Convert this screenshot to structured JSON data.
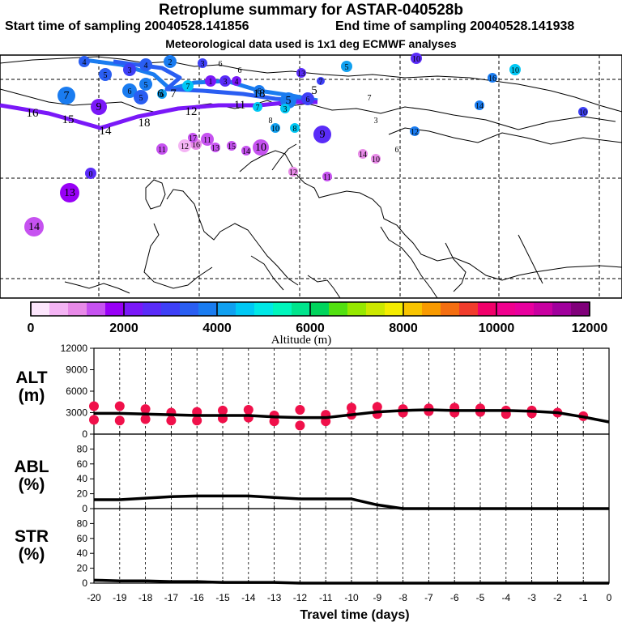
{
  "header": {
    "title": "Retroplume summary for ASTAR-040528b",
    "start": "Start time of sampling 20040528.141856",
    "end": "End time of sampling 20040528.141938",
    "met": "Meteorological data used is 1x1 deg ECMWF analyses"
  },
  "colorbar": {
    "label": "Altitude (m)",
    "ticks": [
      "0",
      "2000",
      "4000",
      "6000",
      "8000",
      "10000",
      "12000"
    ],
    "colors": [
      "#fce6fc",
      "#f4b4f4",
      "#e88ae8",
      "#c652f0",
      "#9800f6",
      "#7a18f8",
      "#5a2cf8",
      "#3e40f6",
      "#2a5ef2",
      "#1a7cf0",
      "#10a0f0",
      "#00c8f4",
      "#00e8e6",
      "#00f6bc",
      "#00e48c",
      "#00d45c",
      "#52e010",
      "#96e800",
      "#cce800",
      "#f4ec00",
      "#f8c400",
      "#f89a00",
      "#f46e10",
      "#f03c2c",
      "#f0006a",
      "#f0008e",
      "#e8009e",
      "#c800a0",
      "#a0009c",
      "#80007a"
    ]
  },
  "map": {
    "label_numbers": [
      "0",
      "1",
      "2",
      "3",
      "4",
      "5",
      "6",
      "7",
      "8",
      "9",
      "10",
      "11",
      "12",
      "13",
      "14",
      "15",
      "16",
      "17",
      "18"
    ]
  },
  "chart_data": [
    {
      "type": "line",
      "name": "ALT",
      "ylabel": "ALT\n(m)",
      "ylim": [
        0,
        12000
      ],
      "yticks": [
        "0",
        "3000",
        "6000",
        "9000",
        "12000"
      ],
      "x": [
        -20,
        -19,
        -18,
        -17,
        -16,
        -15,
        -14,
        -13,
        -12,
        -11,
        -10,
        -9,
        -8,
        -7,
        -6,
        -5,
        -4,
        -3,
        -2,
        -1,
        0
      ],
      "series": [
        {
          "name": "mean altitude",
          "values": [
            2900,
            2900,
            2800,
            2700,
            2600,
            2600,
            2600,
            2400,
            2300,
            2300,
            2700,
            3100,
            3300,
            3400,
            3300,
            3300,
            3300,
            3200,
            3000,
            2400,
            1700
          ]
        }
      ],
      "scatter": [
        {
          "x": -20,
          "y": 3900
        },
        {
          "x": -20,
          "y": 2000
        },
        {
          "x": -19,
          "y": 3900
        },
        {
          "x": -19,
          "y": 1900
        },
        {
          "x": -18,
          "y": 3500
        },
        {
          "x": -18,
          "y": 2100
        },
        {
          "x": -17,
          "y": 3000
        },
        {
          "x": -17,
          "y": 1900
        },
        {
          "x": -16,
          "y": 3100
        },
        {
          "x": -16,
          "y": 1900
        },
        {
          "x": -15,
          "y": 3300
        },
        {
          "x": -15,
          "y": 2200
        },
        {
          "x": -14,
          "y": 3400
        },
        {
          "x": -14,
          "y": 2300
        },
        {
          "x": -13,
          "y": 2600
        },
        {
          "x": -13,
          "y": 1800
        },
        {
          "x": -12,
          "y": 3400
        },
        {
          "x": -12,
          "y": 1200
        },
        {
          "x": -11,
          "y": 2700
        },
        {
          "x": -11,
          "y": 1800
        },
        {
          "x": -10,
          "y": 3700
        },
        {
          "x": -10,
          "y": 2700
        },
        {
          "x": -9,
          "y": 3800
        },
        {
          "x": -9,
          "y": 2800
        },
        {
          "x": -8,
          "y": 3500
        },
        {
          "x": -8,
          "y": 3000
        },
        {
          "x": -7,
          "y": 3600
        },
        {
          "x": -7,
          "y": 3200
        },
        {
          "x": -6,
          "y": 3700
        },
        {
          "x": -6,
          "y": 3000
        },
        {
          "x": -5,
          "y": 3600
        },
        {
          "x": -5,
          "y": 3100
        },
        {
          "x": -4,
          "y": 3300
        },
        {
          "x": -4,
          "y": 2800
        },
        {
          "x": -3,
          "y": 3300
        },
        {
          "x": -3,
          "y": 2900
        },
        {
          "x": -2,
          "y": 3000
        },
        {
          "x": -1,
          "y": 2500
        }
      ]
    },
    {
      "type": "line",
      "name": "ABL",
      "ylabel": "ABL\n(%)",
      "ylim": [
        0,
        100
      ],
      "yticks": [
        "0",
        "20",
        "40",
        "60",
        "80"
      ],
      "x": [
        -20,
        -19,
        -18,
        -17,
        -16,
        -15,
        -14,
        -13,
        -12,
        -11,
        -10,
        -9,
        -8,
        -7,
        -6,
        -5,
        -4,
        -3,
        -2,
        -1,
        0
      ],
      "series": [
        {
          "name": "ABL fraction",
          "values": [
            12,
            12,
            14,
            16,
            17,
            17,
            17,
            15,
            13,
            13,
            13,
            5,
            0,
            0,
            0,
            0,
            0,
            0,
            0,
            0,
            0
          ]
        }
      ]
    },
    {
      "type": "line",
      "name": "STR",
      "ylabel": "STR\n(%)",
      "ylim": [
        0,
        100
      ],
      "yticks": [
        "0",
        "20",
        "40",
        "60",
        "80"
      ],
      "xlabel": "Travel time (days)",
      "xticks": [
        "-20",
        "-19",
        "-18",
        "-17",
        "-16",
        "-15",
        "-14",
        "-13",
        "-12",
        "-11",
        "-10",
        "-9",
        "-8",
        "-7",
        "-6",
        "-5",
        "-4",
        "-3",
        "-2",
        "-1",
        "0"
      ],
      "x": [
        -20,
        -19,
        -18,
        -17,
        -16,
        -15,
        -14,
        -13,
        -12,
        -11,
        -10,
        -9,
        -8,
        -7,
        -6,
        -5,
        -4,
        -3,
        -2,
        -1,
        0
      ],
      "series": [
        {
          "name": "stratospheric fraction",
          "values": [
            4,
            3,
            3,
            2,
            2,
            1,
            1,
            1,
            0,
            0,
            0,
            0,
            0,
            0,
            0,
            0,
            0,
            0,
            0,
            0,
            0
          ]
        }
      ]
    }
  ]
}
